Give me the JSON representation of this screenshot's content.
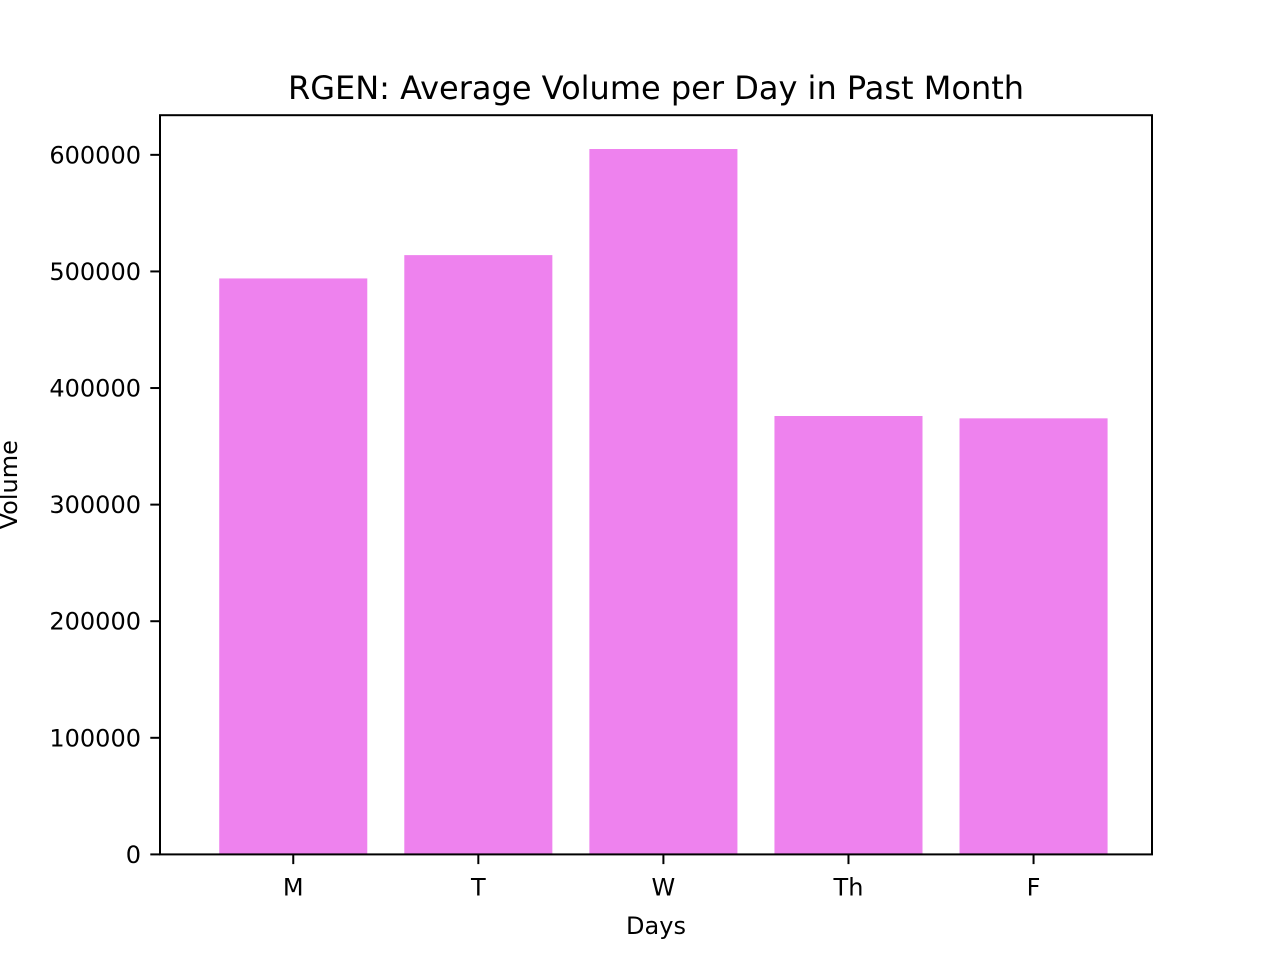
{
  "chart_data": {
    "type": "bar",
    "title": "RGEN: Average Volume per Day in Past Month",
    "xlabel": "Days",
    "ylabel": "Volume",
    "categories": [
      "M",
      "T",
      "W",
      "Th",
      "F"
    ],
    "values": [
      494000,
      514000,
      605000,
      376000,
      374000
    ],
    "ylim": [
      0,
      634000
    ],
    "yticks": [
      0,
      100000,
      200000,
      300000,
      400000,
      500000,
      600000
    ],
    "bar_color": "#ee82ee",
    "grid": false,
    "legend": "none"
  }
}
